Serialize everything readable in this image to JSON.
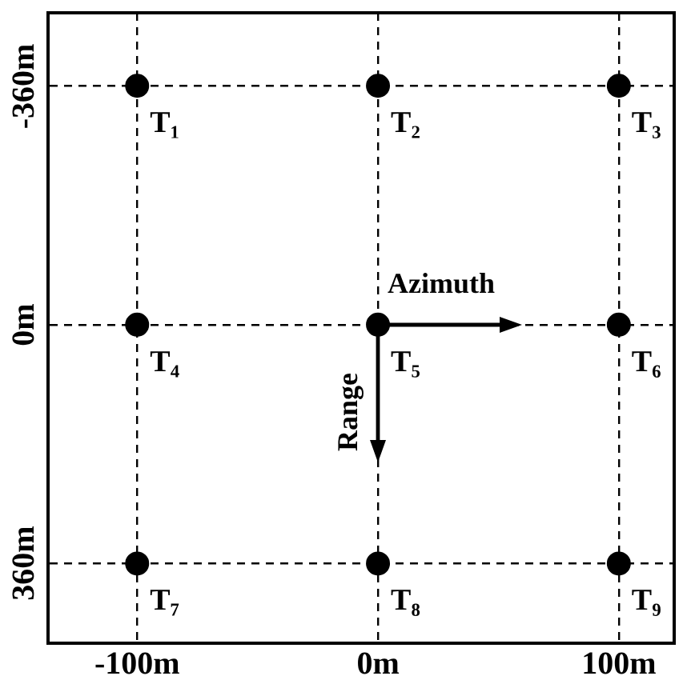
{
  "chart_data": {
    "type": "scatter",
    "x": [
      -100,
      0,
      100,
      -100,
      0,
      100,
      -100,
      0,
      100
    ],
    "values": [
      -360,
      -360,
      -360,
      0,
      0,
      0,
      360,
      360,
      360
    ],
    "color": "#000000",
    "marker": "circle",
    "grid": true,
    "xlim": [
      -137,
      123
    ],
    "xticks": [
      {
        "value": -100,
        "label": "-100m"
      },
      {
        "value": 0,
        "label": "0m"
      },
      {
        "value": 100,
        "label": "100m"
      }
    ],
    "ylim": [
      480,
      -470
    ],
    "yticks": [
      {
        "value": -360,
        "label": "-360m"
      },
      {
        "value": 0,
        "label": "0m"
      },
      {
        "value": 360,
        "label": "360m"
      }
    ],
    "annotations": [
      {
        "text": "T₁",
        "x": -100,
        "y": -360
      },
      {
        "text": "T₂",
        "x": 0,
        "y": -360
      },
      {
        "text": "T₃",
        "x": 100,
        "y": -360
      },
      {
        "text": "T₄",
        "x": -100,
        "y": 0
      },
      {
        "text": "T₅",
        "x": 0,
        "y": 0
      },
      {
        "text": "T₆",
        "x": 100,
        "y": 0
      },
      {
        "text": "T₇",
        "x": -100,
        "y": 360
      },
      {
        "text": "T₈",
        "x": 0,
        "y": 360
      },
      {
        "text": "T₉",
        "x": 100,
        "y": 360
      },
      "Azimuth",
      "Range"
    ]
  }
}
